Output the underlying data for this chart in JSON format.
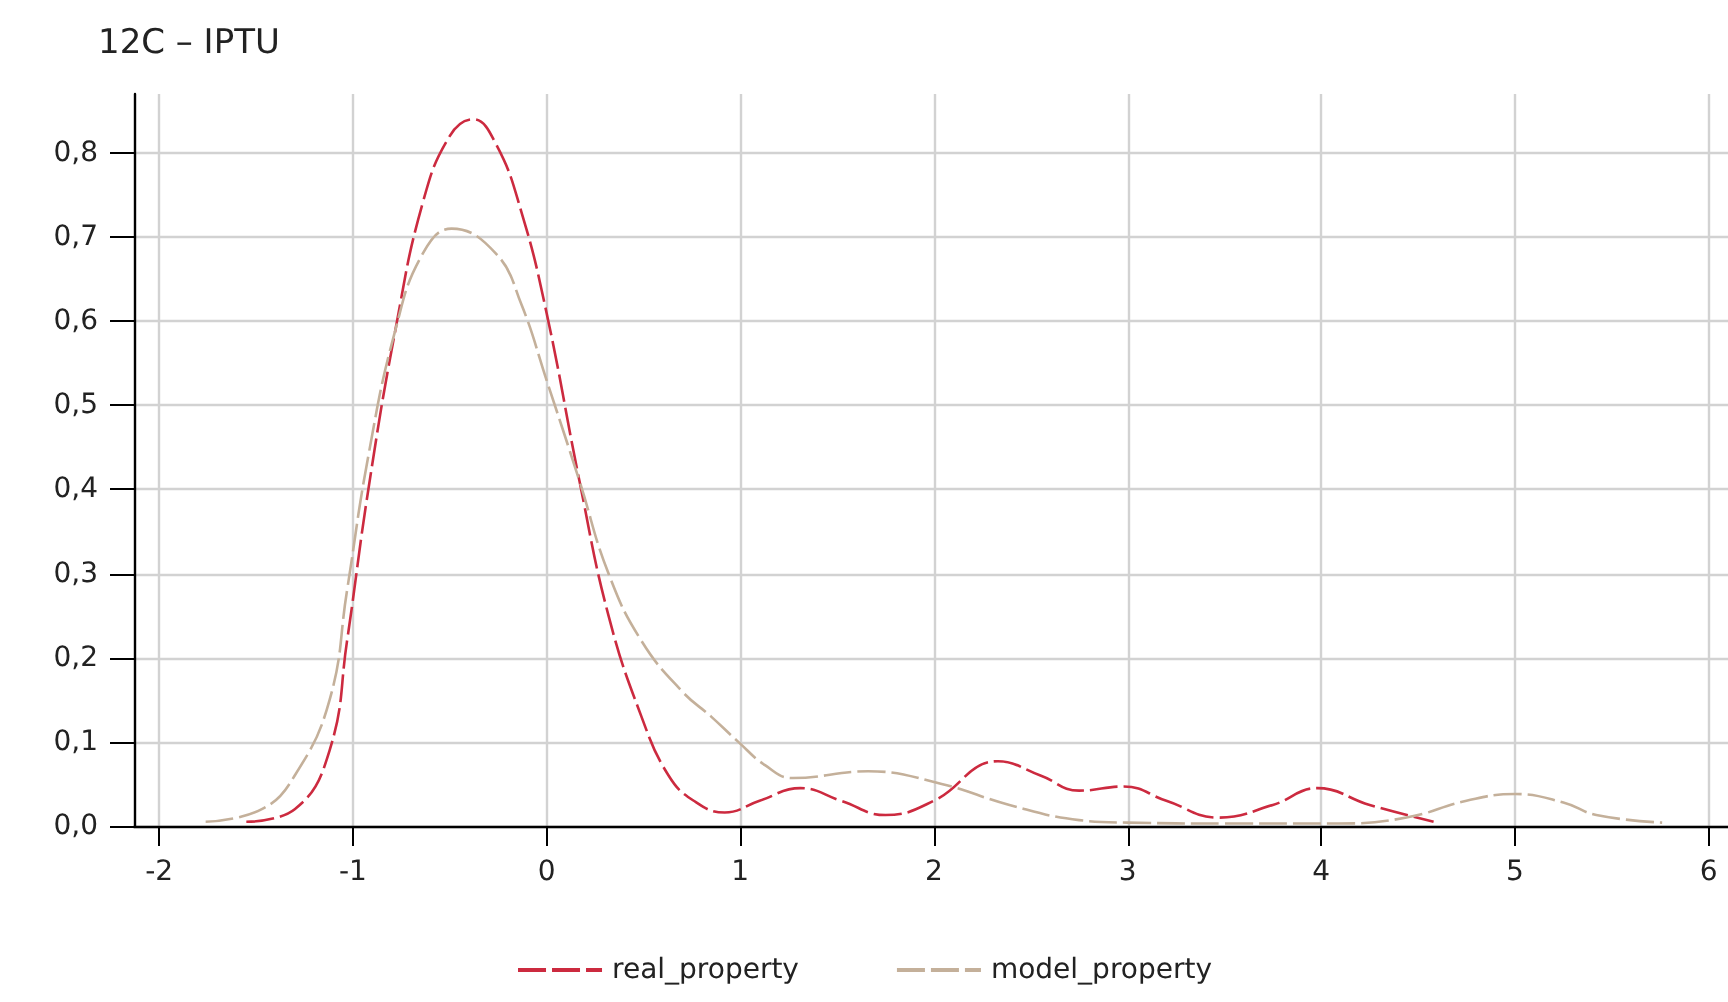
{
  "chart_data": {
    "type": "line",
    "title": "12C – IPTU",
    "xlim": [
      -2.13,
      6.1
    ],
    "xticks": [
      -2,
      -1,
      0,
      1,
      2,
      3,
      4,
      5,
      6
    ],
    "ylim": [
      0,
      0.87
    ],
    "yticks": [
      {
        "value": 0,
        "label": "0,0"
      },
      {
        "value": 0.1,
        "label": "0,1"
      },
      {
        "value": 0.2,
        "label": "0,2"
      },
      {
        "value": 0.3,
        "label": "0,3"
      },
      {
        "value": 0.4,
        "label": "0,4"
      },
      {
        "value": 0.5,
        "label": "0,5"
      },
      {
        "value": 0.6,
        "label": "0,6"
      },
      {
        "value": 0.7,
        "label": "0,7"
      },
      {
        "value": 0.8,
        "label": "0,8"
      }
    ],
    "grid": true,
    "legend": "bottom",
    "marker": "none",
    "line_style": "dashed",
    "series": [
      {
        "name": "real_property",
        "color": "#cc2a3f",
        "x": [
          -1.55,
          -1.3,
          -1.12,
          -1.03,
          -0.92,
          -0.78,
          -0.64,
          -0.5,
          -0.38,
          -0.26,
          -0.13,
          0,
          0.17,
          0.32,
          0.49,
          0.63,
          0.76,
          0.92,
          1.1,
          1.31,
          1.52,
          1.75,
          2.0,
          2.33,
          2.55,
          2.75,
          2.98,
          3.2,
          3.47,
          3.75,
          3.98,
          4.25,
          4.58
        ],
        "values": [
          0.005,
          0.02,
          0.09,
          0.22,
          0.4,
          0.59,
          0.74,
          0.82,
          0.84,
          0.81,
          0.73,
          0.61,
          0.41,
          0.25,
          0.13,
          0.06,
          0.03,
          0.016,
          0.03,
          0.045,
          0.03,
          0.013,
          0.03,
          0.077,
          0.06,
          0.042,
          0.047,
          0.03,
          0.01,
          0.025,
          0.045,
          0.025,
          0.005
        ]
      },
      {
        "name": "model_property",
        "color": "#c4b09a",
        "x": [
          -1.76,
          -1.47,
          -1.3,
          -1.12,
          -1.03,
          -0.92,
          -0.78,
          -0.64,
          -0.49,
          -0.26,
          -0.13,
          0,
          0.17,
          0.32,
          0.49,
          0.7,
          0.85,
          0.99,
          1.13,
          1.27,
          1.66,
          2.04,
          2.39,
          2.75,
          3.0,
          3.5,
          4.09,
          4.44,
          4.75,
          5.0,
          5.25,
          5.42,
          5.76
        ],
        "values": [
          0.005,
          0.02,
          0.06,
          0.15,
          0.28,
          0.44,
          0.59,
          0.68,
          0.71,
          0.68,
          0.62,
          0.53,
          0.41,
          0.3,
          0.22,
          0.16,
          0.13,
          0.1,
          0.072,
          0.057,
          0.065,
          0.05,
          0.025,
          0.007,
          0.004,
          0.003,
          0.003,
          0.01,
          0.03,
          0.038,
          0.028,
          0.013,
          0.004
        ]
      }
    ]
  }
}
